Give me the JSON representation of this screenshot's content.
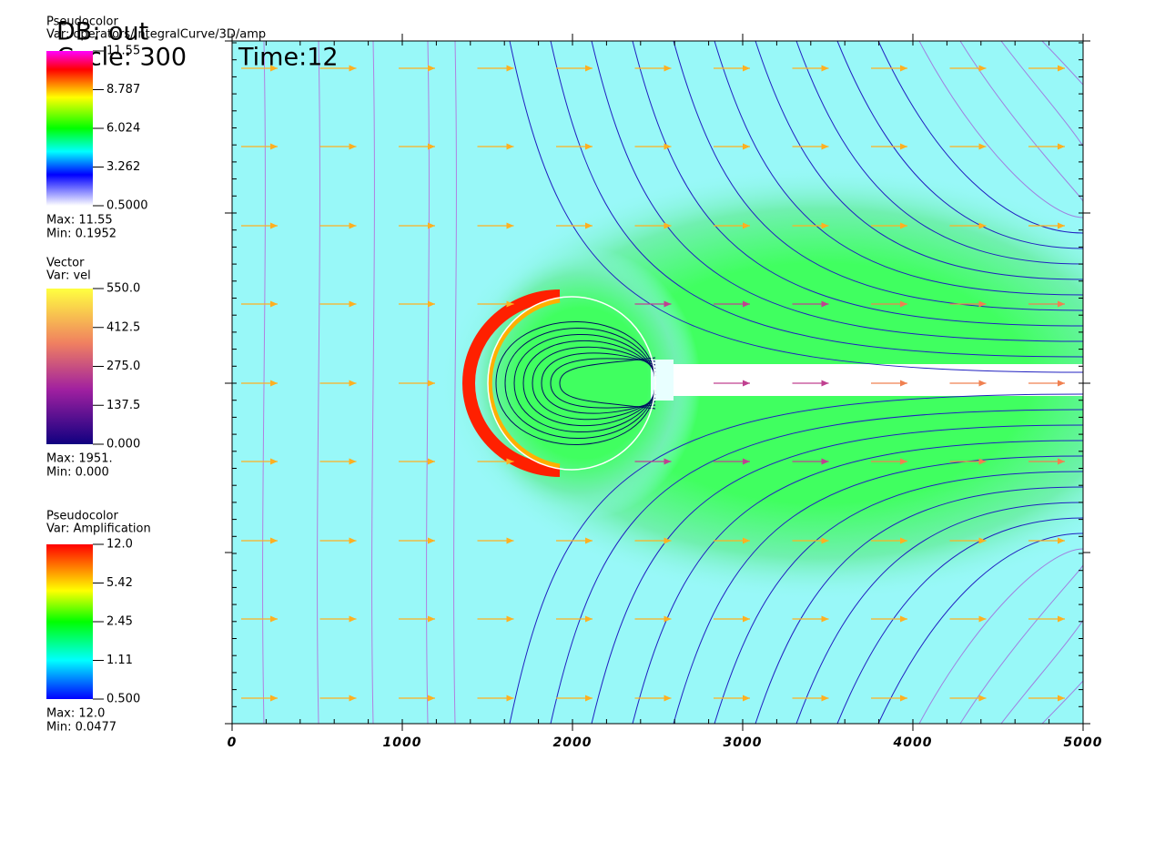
{
  "header": {
    "db": "DB: out",
    "cycle": "Cycle: 300",
    "time": "Time:12"
  },
  "legends": [
    {
      "plot": "Pseudocolor",
      "var": "Var: operators/IntegralCurve/3D/amp",
      "ticks": [
        "11.55",
        "8.787",
        "6.024",
        "3.262",
        "0.5000"
      ],
      "max": "Max:  11.55",
      "min": "Min:  0.1952"
    },
    {
      "plot": "Vector",
      "var": "Var: vel",
      "ticks": [
        "550.0",
        "412.5",
        "275.0",
        "137.5",
        "0.000"
      ],
      "max": "Max:  1951.",
      "min": "Min:  0.000"
    },
    {
      "plot": "Pseudocolor",
      "var": "Var: Amplification",
      "ticks": [
        "12.0",
        "5.42",
        "2.45",
        "1.11",
        "0.500"
      ],
      "max": "Max:  12.0",
      "min": "Min:  0.0477"
    }
  ],
  "axis": {
    "xlim": [
      0,
      5000
    ],
    "xticks": [
      0,
      1000,
      2000,
      3000,
      4000,
      5000
    ]
  }
}
